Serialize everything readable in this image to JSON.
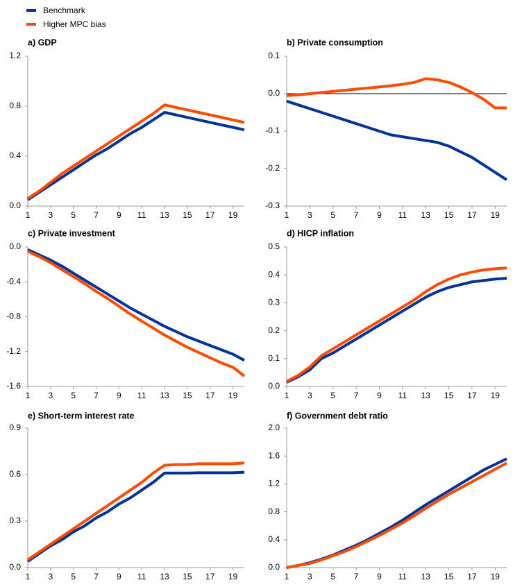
{
  "legend": [
    {
      "name": "Benchmark",
      "color": "#003299"
    },
    {
      "name": "Higher MPC bias",
      "color": "#ff4b00"
    }
  ],
  "chart_data": [
    {
      "type": "line",
      "title": "a) GDP",
      "x": [
        1,
        2,
        3,
        4,
        5,
        6,
        7,
        8,
        9,
        10,
        11,
        12,
        13,
        14,
        15,
        16,
        17,
        18,
        19,
        20
      ],
      "xlim": [
        1,
        20
      ],
      "xticks": [
        1,
        3,
        5,
        7,
        9,
        11,
        13,
        15,
        17,
        19
      ],
      "ylim": [
        0,
        1.2
      ],
      "yticks": [
        {
          "value": 0,
          "label": "0.0"
        },
        0.4,
        0.8,
        1.2
      ],
      "series": [
        {
          "values": [
            0.05,
            0.11,
            0.17,
            0.23,
            0.29,
            0.35,
            0.41,
            0.46,
            0.52,
            0.58,
            0.63,
            0.69,
            0.75,
            0.73,
            0.71,
            0.69,
            0.67,
            0.65,
            0.63,
            0.61
          ]
        },
        {
          "values": [
            0.06,
            0.12,
            0.19,
            0.26,
            0.32,
            0.38,
            0.44,
            0.5,
            0.56,
            0.62,
            0.68,
            0.74,
            0.81,
            0.79,
            0.77,
            0.75,
            0.73,
            0.71,
            0.69,
            0.67
          ]
        }
      ]
    },
    {
      "type": "line",
      "title": "b) Private consumption",
      "x": [
        1,
        2,
        3,
        4,
        5,
        6,
        7,
        8,
        9,
        10,
        11,
        12,
        13,
        14,
        15,
        16,
        17,
        18,
        19,
        20
      ],
      "xlim": [
        1,
        20
      ],
      "xticks": [
        1,
        3,
        5,
        7,
        9,
        11,
        13,
        15,
        17,
        19
      ],
      "ylim": [
        -0.3,
        0.1
      ],
      "yticks": [
        -0.3,
        -0.2,
        -0.1,
        {
          "value": 0,
          "label": "0.0"
        },
        0.1
      ],
      "zero_line": true,
      "series": [
        {
          "values": [
            -0.02,
            -0.03,
            -0.04,
            -0.05,
            -0.06,
            -0.07,
            -0.08,
            -0.09,
            -0.1,
            -0.11,
            -0.115,
            -0.12,
            -0.125,
            -0.13,
            -0.14,
            -0.155,
            -0.17,
            -0.19,
            -0.21,
            -0.23
          ]
        },
        {
          "values": [
            -0.005,
            -0.003,
            0,
            0.003,
            0.006,
            0.009,
            0.012,
            0.015,
            0.018,
            0.021,
            0.025,
            0.03,
            0.04,
            0.037,
            0.03,
            0.018,
            0.003,
            -0.015,
            -0.038,
            -0.038
          ]
        }
      ]
    },
    {
      "type": "line",
      "title": "c) Private investment",
      "x": [
        1,
        2,
        3,
        4,
        5,
        6,
        7,
        8,
        9,
        10,
        11,
        12,
        13,
        14,
        15,
        16,
        17,
        18,
        19,
        20
      ],
      "xlim": [
        1,
        20
      ],
      "xticks": [
        1,
        3,
        5,
        7,
        9,
        11,
        13,
        15,
        17,
        19
      ],
      "ylim": [
        -1.6,
        0
      ],
      "yticks": [
        -1.6,
        -1.2,
        -0.8,
        -0.4,
        {
          "value": 0,
          "label": "0.0"
        }
      ],
      "series": [
        {
          "values": [
            -0.03,
            -0.09,
            -0.15,
            -0.22,
            -0.3,
            -0.38,
            -0.46,
            -0.54,
            -0.62,
            -0.7,
            -0.77,
            -0.84,
            -0.91,
            -0.97,
            -1.03,
            -1.08,
            -1.13,
            -1.18,
            -1.23,
            -1.3
          ]
        },
        {
          "values": [
            -0.05,
            -0.11,
            -0.18,
            -0.26,
            -0.34,
            -0.42,
            -0.51,
            -0.59,
            -0.68,
            -0.77,
            -0.85,
            -0.93,
            -1.01,
            -1.08,
            -1.15,
            -1.21,
            -1.27,
            -1.33,
            -1.38,
            -1.48
          ]
        }
      ]
    },
    {
      "type": "line",
      "title": "d) HICP inflation",
      "x": [
        1,
        2,
        3,
        4,
        5,
        6,
        7,
        8,
        9,
        10,
        11,
        12,
        13,
        14,
        15,
        16,
        17,
        18,
        19,
        20
      ],
      "xlim": [
        1,
        20
      ],
      "xticks": [
        1,
        3,
        5,
        7,
        9,
        11,
        13,
        15,
        17,
        19
      ],
      "ylim": [
        0,
        0.5
      ],
      "yticks": [
        {
          "value": 0,
          "label": "0.0"
        },
        0.1,
        0.2,
        0.3,
        0.4,
        0.5
      ],
      "series": [
        {
          "values": [
            0.015,
            0.035,
            0.06,
            0.1,
            0.12,
            0.145,
            0.17,
            0.195,
            0.22,
            0.245,
            0.27,
            0.295,
            0.32,
            0.34,
            0.355,
            0.365,
            0.375,
            0.38,
            0.385,
            0.388
          ]
        },
        {
          "values": [
            0.018,
            0.04,
            0.07,
            0.11,
            0.135,
            0.16,
            0.185,
            0.21,
            0.235,
            0.26,
            0.285,
            0.31,
            0.34,
            0.365,
            0.385,
            0.4,
            0.41,
            0.418,
            0.422,
            0.425
          ]
        }
      ]
    },
    {
      "type": "line",
      "title": "e) Short-term interest rate",
      "x": [
        1,
        2,
        3,
        4,
        5,
        6,
        7,
        8,
        9,
        10,
        11,
        12,
        13,
        14,
        15,
        16,
        17,
        18,
        19,
        20
      ],
      "xlim": [
        1,
        20
      ],
      "xticks": [
        1,
        3,
        5,
        7,
        9,
        11,
        13,
        15,
        17,
        19
      ],
      "ylim": [
        0,
        0.9
      ],
      "yticks": [
        {
          "value": 0,
          "label": "0.0"
        },
        0.3,
        0.6,
        0.9
      ],
      "series": [
        {
          "values": [
            0.04,
            0.09,
            0.14,
            0.18,
            0.23,
            0.27,
            0.32,
            0.36,
            0.41,
            0.45,
            0.5,
            0.55,
            0.61,
            0.61,
            0.61,
            0.612,
            0.612,
            0.612,
            0.612,
            0.615
          ]
        },
        {
          "values": [
            0.05,
            0.1,
            0.15,
            0.2,
            0.25,
            0.3,
            0.35,
            0.4,
            0.45,
            0.5,
            0.55,
            0.61,
            0.66,
            0.665,
            0.665,
            0.67,
            0.67,
            0.67,
            0.67,
            0.675
          ]
        }
      ]
    },
    {
      "type": "line",
      "title": "f) Government debt ratio",
      "x": [
        1,
        2,
        3,
        4,
        5,
        6,
        7,
        8,
        9,
        10,
        11,
        12,
        13,
        14,
        15,
        16,
        17,
        18,
        19,
        20
      ],
      "xlim": [
        1,
        20
      ],
      "xticks": [
        1,
        3,
        5,
        7,
        9,
        11,
        13,
        15,
        17,
        19
      ],
      "ylim": [
        0,
        2
      ],
      "yticks": [
        {
          "value": 0,
          "label": "0.0"
        },
        0.4,
        0.8,
        1.2,
        1.6,
        {
          "value": 2,
          "label": "2.0"
        }
      ],
      "series": [
        {
          "values": [
            0,
            0.03,
            0.07,
            0.12,
            0.18,
            0.25,
            0.32,
            0.4,
            0.49,
            0.58,
            0.68,
            0.79,
            0.9,
            1,
            1.1,
            1.2,
            1.3,
            1.4,
            1.48,
            1.56
          ]
        },
        {
          "values": [
            0,
            0.03,
            0.06,
            0.11,
            0.17,
            0.23,
            0.3,
            0.38,
            0.46,
            0.55,
            0.64,
            0.74,
            0.85,
            0.95,
            1.05,
            1.14,
            1.23,
            1.32,
            1.41,
            1.5
          ]
        }
      ]
    }
  ]
}
